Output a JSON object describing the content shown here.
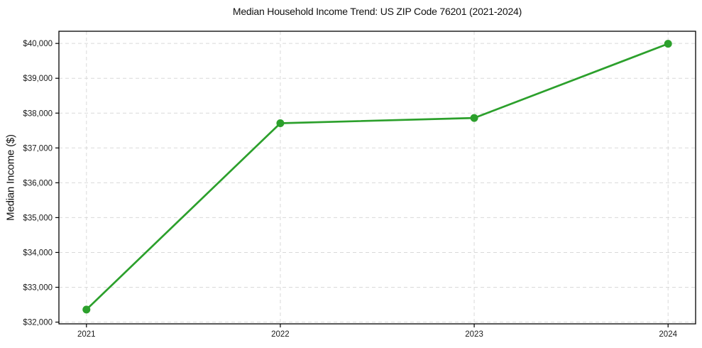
{
  "figure": {
    "background": "#ffffff"
  },
  "chart_data": {
    "type": "line",
    "title": "Median Household Income Trend: US ZIP Code 76201 (2021-2024)",
    "xlabel": "",
    "ylabel": "Median Income ($)",
    "x": [
      2021,
      2022,
      2023,
      2024
    ],
    "values": [
      32360,
      37710,
      37860,
      39990
    ],
    "xtick_labels": [
      "2021",
      "2022",
      "2023",
      "2024"
    ],
    "ytick_values": [
      32000,
      33000,
      34000,
      35000,
      36000,
      37000,
      38000,
      39000,
      40000
    ],
    "ytick_labels": [
      "$32,000",
      "$33,000",
      "$34,000",
      "$35,000",
      "$36,000",
      "$37,000",
      "$38,000",
      "$39,000",
      "$40,000"
    ],
    "xlim": [
      2020.858,
      2024.142
    ],
    "ylim": [
      31950,
      40350
    ],
    "grid": {
      "visible": true,
      "style": "dashed",
      "axes": "both",
      "color": "#d9d9d9"
    },
    "legend": "none",
    "line_color": "#2ca02c",
    "marker": {
      "shape": "circle",
      "color": "#2ca02c",
      "radius": 5.5
    },
    "axis_color": "#000000",
    "tick_text_color": "#1a1a1a"
  }
}
